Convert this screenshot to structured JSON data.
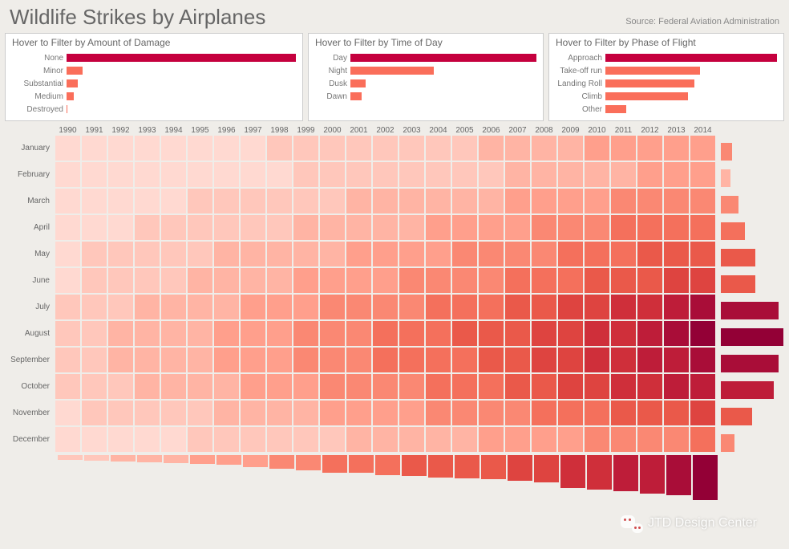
{
  "title": "Wildlife Strikes by Airplanes",
  "source": "Source: Federal Aviation Administration",
  "colors": {
    "background": "#efede9",
    "panel_bg": "#ffffff",
    "panel_border": "#cccccc",
    "text_main": "#666666",
    "text_sub": "#888888",
    "bar_primary": "#c5003e",
    "bar_secondary": "#fa6e5a",
    "heat_scale": [
      "#ffd9d1",
      "#ffc7bb",
      "#ffb4a4",
      "#ff9f8c",
      "#fa8873",
      "#f4705c",
      "#ea594a",
      "#de4440",
      "#cf2f3a",
      "#be1d39",
      "#a90d38",
      "#930036"
    ]
  },
  "filters": {
    "damage": {
      "title": "Hover to Filter by Amount of Damage",
      "label_width": 68,
      "rows": [
        {
          "label": "None",
          "value": 1.0,
          "color": "#c5003e"
        },
        {
          "label": "Minor",
          "value": 0.07,
          "color": "#fa6e5a"
        },
        {
          "label": "Substantial",
          "value": 0.05,
          "color": "#fa6e5a"
        },
        {
          "label": "Medium",
          "value": 0.03,
          "color": "#fa6e5a"
        },
        {
          "label": "Destroyed",
          "value": 0.005,
          "color": "#fa6e5a"
        }
      ]
    },
    "time": {
      "title": "Hover to Filter by Time of Day",
      "label_width": 44,
      "rows": [
        {
          "label": "Day",
          "value": 1.0,
          "color": "#c5003e"
        },
        {
          "label": "Night",
          "value": 0.45,
          "color": "#fa6e5a"
        },
        {
          "label": "Dusk",
          "value": 0.08,
          "color": "#fa6e5a"
        },
        {
          "label": "Dawn",
          "value": 0.06,
          "color": "#fa6e5a"
        }
      ]
    },
    "phase": {
      "title": "Hover to Filter by Phase of Flight",
      "label_width": 62,
      "rows": [
        {
          "label": "Approach",
          "value": 1.0,
          "color": "#c5003e"
        },
        {
          "label": "Take-off run",
          "value": 0.55,
          "color": "#fa6e5a"
        },
        {
          "label": "Landing Roll",
          "value": 0.52,
          "color": "#fa6e5a"
        },
        {
          "label": "Climb",
          "value": 0.48,
          "color": "#fa6e5a"
        },
        {
          "label": "Other",
          "value": 0.12,
          "color": "#fa6e5a"
        }
      ]
    }
  },
  "heatmap": {
    "years": [
      "1990",
      "1991",
      "1992",
      "1993",
      "1994",
      "1995",
      "1996",
      "1997",
      "1998",
      "1999",
      "2000",
      "2001",
      "2002",
      "2003",
      "2004",
      "2005",
      "2006",
      "2007",
      "2008",
      "2009",
      "2010",
      "2011",
      "2012",
      "2013",
      "2014"
    ],
    "months": [
      "January",
      "February",
      "March",
      "April",
      "May",
      "June",
      "July",
      "August",
      "September",
      "October",
      "November",
      "December"
    ],
    "cell_size": 33,
    "intensity": [
      [
        0,
        0,
        0,
        0,
        0,
        0,
        0,
        0,
        1,
        1,
        1,
        1,
        1,
        1,
        1,
        1,
        2,
        2,
        2,
        2,
        3,
        3,
        3,
        3,
        3
      ],
      [
        0,
        0,
        0,
        0,
        0,
        0,
        0,
        0,
        0,
        1,
        1,
        1,
        1,
        1,
        1,
        1,
        1,
        2,
        2,
        2,
        2,
        2,
        3,
        3,
        3
      ],
      [
        0,
        0,
        0,
        0,
        0,
        1,
        1,
        1,
        1,
        1,
        1,
        2,
        2,
        2,
        2,
        2,
        2,
        3,
        3,
        3,
        3,
        4,
        4,
        4,
        4
      ],
      [
        0,
        0,
        0,
        1,
        1,
        1,
        1,
        1,
        1,
        2,
        2,
        2,
        2,
        2,
        3,
        3,
        3,
        3,
        4,
        4,
        4,
        5,
        5,
        5,
        5
      ],
      [
        0,
        1,
        1,
        1,
        1,
        1,
        2,
        2,
        2,
        2,
        2,
        3,
        3,
        3,
        3,
        4,
        4,
        4,
        4,
        5,
        5,
        5,
        6,
        6,
        6
      ],
      [
        0,
        1,
        1,
        1,
        1,
        2,
        2,
        2,
        2,
        3,
        3,
        3,
        3,
        4,
        4,
        4,
        4,
        5,
        5,
        5,
        6,
        6,
        6,
        7,
        7
      ],
      [
        1,
        1,
        1,
        2,
        2,
        2,
        2,
        3,
        3,
        3,
        4,
        4,
        4,
        4,
        5,
        5,
        5,
        6,
        6,
        7,
        7,
        8,
        8,
        9,
        10
      ],
      [
        1,
        1,
        2,
        2,
        2,
        2,
        3,
        3,
        3,
        4,
        4,
        4,
        5,
        5,
        5,
        6,
        6,
        6,
        7,
        7,
        8,
        8,
        9,
        10,
        11
      ],
      [
        1,
        1,
        2,
        2,
        2,
        2,
        3,
        3,
        3,
        4,
        4,
        4,
        5,
        5,
        5,
        5,
        6,
        6,
        7,
        7,
        8,
        8,
        9,
        9,
        10
      ],
      [
        1,
        1,
        1,
        2,
        2,
        2,
        2,
        3,
        3,
        3,
        4,
        4,
        4,
        4,
        5,
        5,
        5,
        6,
        6,
        7,
        7,
        8,
        8,
        9,
        9
      ],
      [
        0,
        1,
        1,
        1,
        1,
        1,
        2,
        2,
        2,
        2,
        3,
        3,
        3,
        3,
        4,
        4,
        4,
        4,
        5,
        5,
        5,
        6,
        6,
        6,
        7
      ],
      [
        0,
        0,
        0,
        0,
        0,
        1,
        1,
        1,
        1,
        1,
        1,
        2,
        2,
        2,
        2,
        2,
        3,
        3,
        3,
        3,
        4,
        4,
        4,
        4,
        5
      ]
    ]
  },
  "month_totals": {
    "max_width": 78,
    "values": [
      {
        "v": 0.18,
        "c": "#fa8873"
      },
      {
        "v": 0.15,
        "c": "#ffb4a4"
      },
      {
        "v": 0.28,
        "c": "#fa8873"
      },
      {
        "v": 0.38,
        "c": "#f4705c"
      },
      {
        "v": 0.55,
        "c": "#ea594a"
      },
      {
        "v": 0.55,
        "c": "#ea594a"
      },
      {
        "v": 0.92,
        "c": "#a90d38"
      },
      {
        "v": 1.0,
        "c": "#930036"
      },
      {
        "v": 0.92,
        "c": "#a90d38"
      },
      {
        "v": 0.85,
        "c": "#be1d39"
      },
      {
        "v": 0.5,
        "c": "#ea594a"
      },
      {
        "v": 0.22,
        "c": "#fa8873"
      }
    ]
  },
  "year_totals": {
    "max_height": 56,
    "values": [
      {
        "v": 0.1,
        "c": "#ffc7bb"
      },
      {
        "v": 0.12,
        "c": "#ffc7bb"
      },
      {
        "v": 0.14,
        "c": "#ffb4a4"
      },
      {
        "v": 0.16,
        "c": "#ffb4a4"
      },
      {
        "v": 0.18,
        "c": "#ffb4a4"
      },
      {
        "v": 0.2,
        "c": "#ff9f8c"
      },
      {
        "v": 0.22,
        "c": "#ff9f8c"
      },
      {
        "v": 0.26,
        "c": "#ff9f8c"
      },
      {
        "v": 0.3,
        "c": "#fa8873"
      },
      {
        "v": 0.34,
        "c": "#fa8873"
      },
      {
        "v": 0.4,
        "c": "#f4705c"
      },
      {
        "v": 0.4,
        "c": "#f4705c"
      },
      {
        "v": 0.44,
        "c": "#f4705c"
      },
      {
        "v": 0.46,
        "c": "#ea594a"
      },
      {
        "v": 0.5,
        "c": "#ea594a"
      },
      {
        "v": 0.52,
        "c": "#ea594a"
      },
      {
        "v": 0.54,
        "c": "#ea594a"
      },
      {
        "v": 0.58,
        "c": "#de4440"
      },
      {
        "v": 0.6,
        "c": "#de4440"
      },
      {
        "v": 0.74,
        "c": "#cf2f3a"
      },
      {
        "v": 0.76,
        "c": "#cf2f3a"
      },
      {
        "v": 0.8,
        "c": "#be1d39"
      },
      {
        "v": 0.86,
        "c": "#be1d39"
      },
      {
        "v": 0.9,
        "c": "#a90d38"
      },
      {
        "v": 1.0,
        "c": "#930036"
      }
    ]
  },
  "watermark": "JTD Design Center"
}
